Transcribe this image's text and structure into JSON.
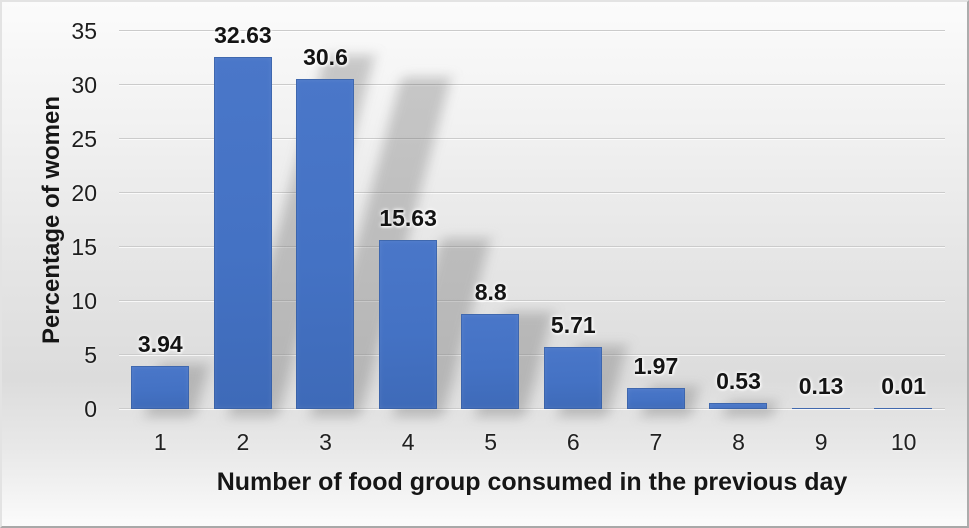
{
  "chart_data": {
    "type": "bar",
    "title": "",
    "categories": [
      "1",
      "2",
      "3",
      "4",
      "5",
      "6",
      "7",
      "8",
      "9",
      "10"
    ],
    "values": [
      3.94,
      32.63,
      30.6,
      15.63,
      8.8,
      5.71,
      1.97,
      0.53,
      0.13,
      0.01
    ],
    "data_labels": [
      "3.94",
      "32.63",
      "30.6",
      "15.63",
      "8.8",
      "5.71",
      "1.97",
      "0.53",
      "0.13",
      "0.01"
    ],
    "xlabel": "Number of food group consumed in the previous day",
    "ylabel": "Percentage of women",
    "ylim": [
      0,
      35
    ],
    "yticks": [
      0,
      5,
      10,
      15,
      20,
      25,
      30,
      35
    ],
    "grid": true,
    "legend": false,
    "data_labels_shown": true,
    "bar_color": "#4472C4",
    "bar_edge_color": "#2F5597",
    "gridline_color": "#CBCBCB",
    "text_color": "#1e1e1e",
    "background_style": "vertical gradient white to gray to white",
    "bar_drop_shadow": true
  }
}
